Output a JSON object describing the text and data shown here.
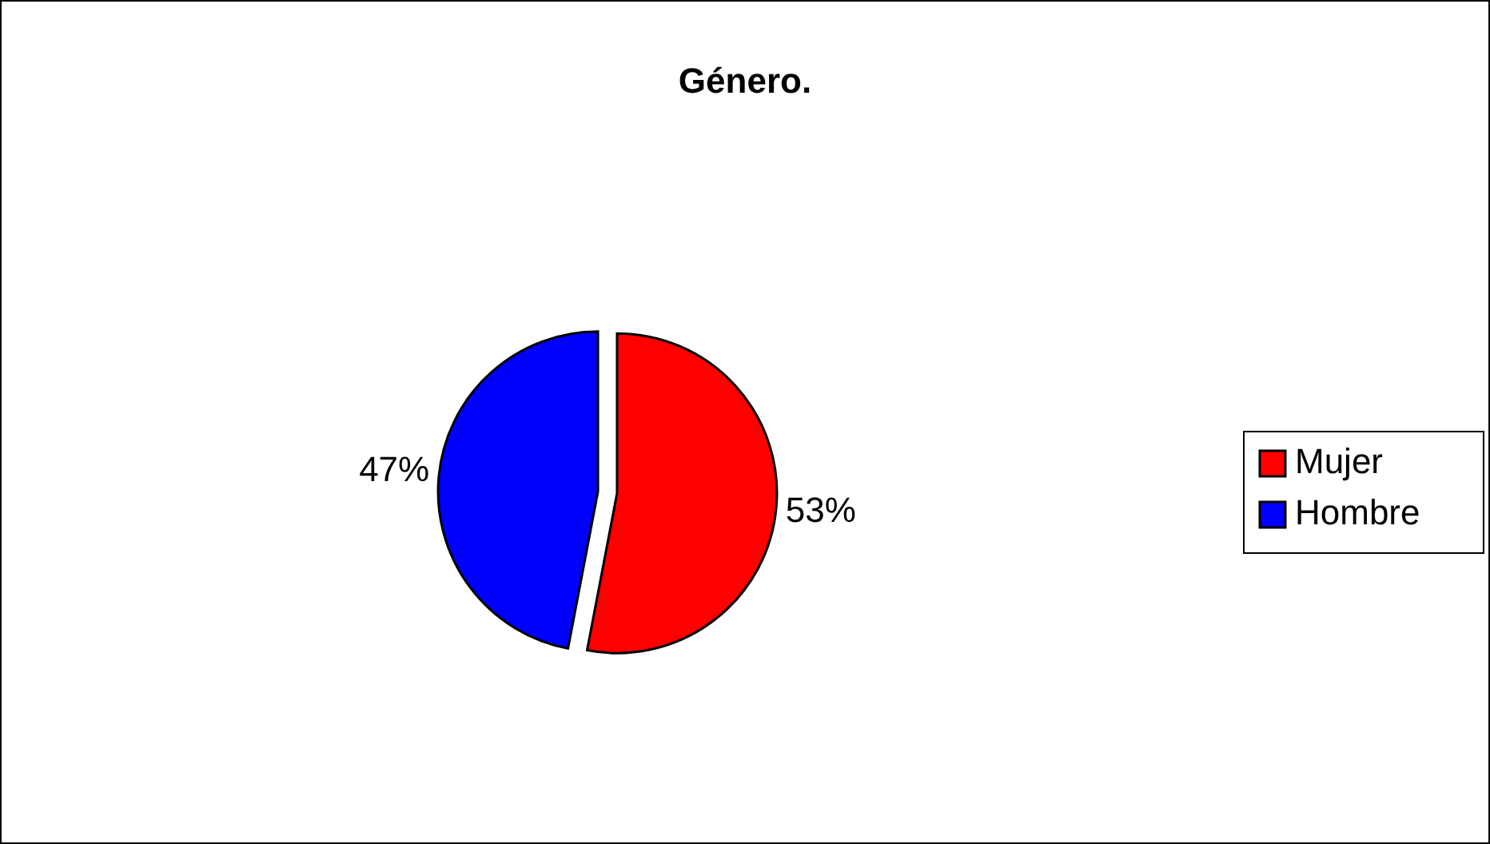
{
  "chart_data": {
    "type": "pie",
    "title": "Género.",
    "categories": [
      "Mujer",
      "Hombre"
    ],
    "values": [
      53,
      47
    ],
    "colors": [
      "#ff0000",
      "#0000ff"
    ],
    "value_labels": [
      "53%",
      "47%"
    ],
    "legend": "right"
  }
}
